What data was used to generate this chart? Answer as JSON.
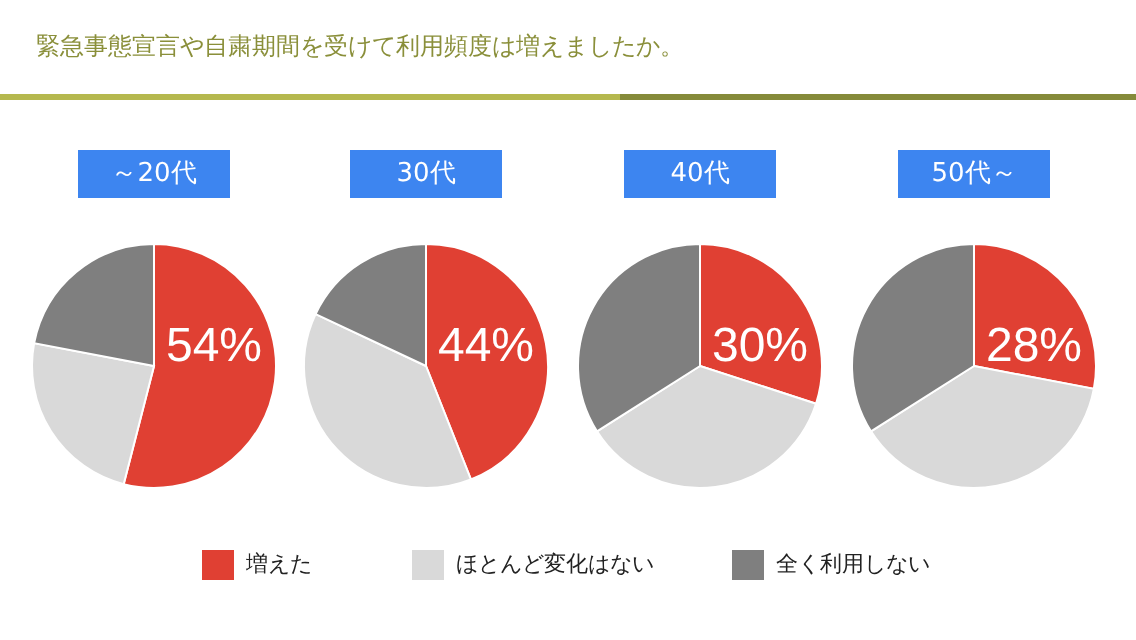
{
  "chart_data": [
    {
      "type": "pie",
      "annotations": [
        "緊急事態宣言や自粛期間を受けて利用頻度は増えましたか。"
      ],
      "title": "～20代",
      "categories": [
        "増えた",
        "ほとんど変化はない",
        "全く利用しない"
      ],
      "values": [
        54,
        24,
        22
      ],
      "colors": [
        "#e04033",
        "#d9d9d9",
        "#7f7f7f"
      ],
      "value_labels": [
        "54%",
        null,
        null
      ],
      "legend": "bottom"
    },
    {
      "type": "pie",
      "title": "30代",
      "categories": [
        null,
        null,
        null
      ],
      "values": [
        44,
        38,
        18
      ],
      "colors": [
        "#e04033",
        "#d9d9d9",
        "#7f7f7f"
      ],
      "value_labels": [
        "44%",
        null,
        null
      ]
    },
    {
      "type": "pie",
      "title": "40代",
      "categories": [
        null,
        null,
        null
      ],
      "values": [
        30,
        36,
        34
      ],
      "colors": [
        "#e04033",
        "#d9d9d9",
        "#7f7f7f"
      ],
      "value_labels": [
        "30%",
        null,
        null
      ]
    },
    {
      "type": "pie",
      "title": "50代～",
      "categories": [
        null,
        null,
        null
      ],
      "values": [
        28,
        38,
        34
      ],
      "colors": [
        "#e04033",
        "#d9d9d9",
        "#7f7f7f"
      ],
      "value_labels": [
        "28%",
        null,
        null
      ]
    }
  ]
}
